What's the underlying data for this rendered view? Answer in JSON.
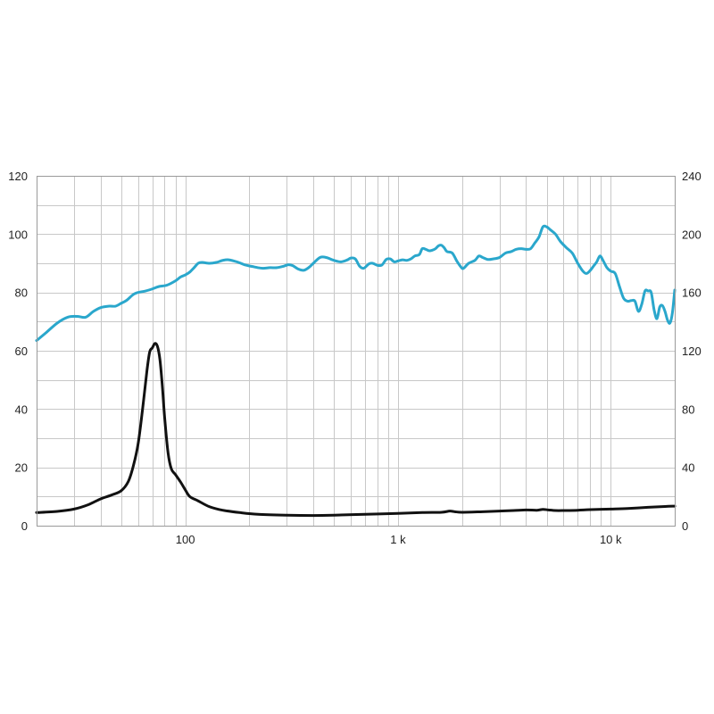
{
  "chart_data": {
    "type": "line",
    "x_scale": "log",
    "xlim": [
      20,
      20000
    ],
    "ylim_left": [
      0,
      120
    ],
    "ylim_right": [
      0,
      240
    ],
    "grid": true,
    "legend": "none",
    "x_ticks": [
      {
        "value": 100,
        "label": "100"
      },
      {
        "value": 1000,
        "label": "1 k"
      },
      {
        "value": 10000,
        "label": "10 k"
      }
    ],
    "left_ticks": [
      {
        "value": 0,
        "label": "0"
      },
      {
        "value": 20,
        "label": "20"
      },
      {
        "value": 40,
        "label": "40"
      },
      {
        "value": 60,
        "label": "60"
      },
      {
        "value": 80,
        "label": "80"
      },
      {
        "value": 100,
        "label": "100"
      },
      {
        "value": 120,
        "label": "120"
      }
    ],
    "right_ticks": [
      {
        "value": 0,
        "label": "0"
      },
      {
        "value": 40,
        "label": "40"
      },
      {
        "value": 80,
        "label": "80"
      },
      {
        "value": 120,
        "label": "120"
      },
      {
        "value": 160,
        "label": "160"
      },
      {
        "value": 200,
        "label": "200"
      },
      {
        "value": 240,
        "label": "240"
      }
    ],
    "series": [
      {
        "axis": "left",
        "color": "#2aa7cc",
        "points": [
          [
            20,
            63.5
          ],
          [
            22,
            66
          ],
          [
            25,
            69.5
          ],
          [
            28,
            71.5
          ],
          [
            31,
            71.8
          ],
          [
            34,
            71.5
          ],
          [
            37,
            73.5
          ],
          [
            40,
            74.8
          ],
          [
            44,
            75.3
          ],
          [
            47,
            75.3
          ],
          [
            50,
            76.3
          ],
          [
            53,
            77.3
          ],
          [
            57,
            79.3
          ],
          [
            60,
            80
          ],
          [
            65,
            80.5
          ],
          [
            70,
            81.2
          ],
          [
            75,
            82
          ],
          [
            82,
            82.5
          ],
          [
            90,
            84
          ],
          [
            95,
            85.3
          ],
          [
            100,
            86
          ],
          [
            105,
            87
          ],
          [
            110,
            88.5
          ],
          [
            115,
            90
          ],
          [
            120,
            90.3
          ],
          [
            130,
            90
          ],
          [
            140,
            90.3
          ],
          [
            150,
            91
          ],
          [
            160,
            91.2
          ],
          [
            175,
            90.5
          ],
          [
            190,
            89.5
          ],
          [
            210,
            88.8
          ],
          [
            230,
            88.3
          ],
          [
            250,
            88.5
          ],
          [
            270,
            88.5
          ],
          [
            290,
            89
          ],
          [
            305,
            89.5
          ],
          [
            320,
            89.2
          ],
          [
            340,
            88
          ],
          [
            360,
            87.6
          ],
          [
            380,
            88.5
          ],
          [
            400,
            90
          ],
          [
            430,
            92
          ],
          [
            460,
            92
          ],
          [
            500,
            91
          ],
          [
            540,
            90.5
          ],
          [
            580,
            91.2
          ],
          [
            600,
            91.8
          ],
          [
            630,
            91.5
          ],
          [
            660,
            89
          ],
          [
            690,
            88.3
          ],
          [
            730,
            89.8
          ],
          [
            760,
            90
          ],
          [
            800,
            89.3
          ],
          [
            840,
            89.4
          ],
          [
            880,
            91.3
          ],
          [
            920,
            91.5
          ],
          [
            960,
            90.5
          ],
          [
            1000,
            90.8
          ],
          [
            1050,
            91.2
          ],
          [
            1100,
            91
          ],
          [
            1150,
            91.5
          ],
          [
            1200,
            92.5
          ],
          [
            1260,
            93
          ],
          [
            1300,
            95
          ],
          [
            1350,
            94.8
          ],
          [
            1400,
            94.3
          ],
          [
            1450,
            94.5
          ],
          [
            1500,
            95
          ],
          [
            1550,
            96
          ],
          [
            1600,
            96.2
          ],
          [
            1650,
            95.3
          ],
          [
            1700,
            94
          ],
          [
            1800,
            93.5
          ],
          [
            1900,
            90.5
          ],
          [
            2000,
            88.3
          ],
          [
            2050,
            88.5
          ],
          [
            2150,
            90
          ],
          [
            2300,
            91
          ],
          [
            2400,
            92.5
          ],
          [
            2500,
            92
          ],
          [
            2650,
            91.3
          ],
          [
            2800,
            91.5
          ],
          [
            3000,
            92
          ],
          [
            3200,
            93.5
          ],
          [
            3400,
            94
          ],
          [
            3600,
            94.8
          ],
          [
            3800,
            95
          ],
          [
            4000,
            94.8
          ],
          [
            4200,
            95
          ],
          [
            4400,
            97
          ],
          [
            4600,
            99
          ],
          [
            4800,
            102.5
          ],
          [
            5000,
            102.5
          ],
          [
            5200,
            101.5
          ],
          [
            5500,
            100
          ],
          [
            5800,
            97.5
          ],
          [
            6200,
            95.3
          ],
          [
            6600,
            93.5
          ],
          [
            7000,
            90
          ],
          [
            7400,
            87.3
          ],
          [
            7700,
            86.5
          ],
          [
            8000,
            87.5
          ],
          [
            8300,
            89
          ],
          [
            8600,
            90.5
          ],
          [
            8900,
            92.5
          ],
          [
            9200,
            91
          ],
          [
            9600,
            88.5
          ],
          [
            10000,
            87.3
          ],
          [
            10500,
            86.5
          ],
          [
            11000,
            82
          ],
          [
            11500,
            78
          ],
          [
            12000,
            77
          ],
          [
            12500,
            77.2
          ],
          [
            13000,
            77
          ],
          [
            13500,
            73.5
          ],
          [
            14000,
            76
          ],
          [
            14500,
            80.5
          ],
          [
            15000,
            80.5
          ],
          [
            15500,
            80
          ],
          [
            16000,
            74
          ],
          [
            16500,
            71
          ],
          [
            17000,
            75
          ],
          [
            17500,
            75.5
          ],
          [
            18000,
            73.5
          ],
          [
            18500,
            70.5
          ],
          [
            19000,
            69.5
          ],
          [
            19500,
            73
          ],
          [
            20000,
            80.8
          ]
        ]
      },
      {
        "axis": "left",
        "color": "#111111",
        "points": [
          [
            20,
            4.5
          ],
          [
            25,
            4.9
          ],
          [
            30,
            5.7
          ],
          [
            35,
            7.2
          ],
          [
            40,
            9.2
          ],
          [
            45,
            10.5
          ],
          [
            50,
            12
          ],
          [
            54,
            15.2
          ],
          [
            57,
            20.5
          ],
          [
            60,
            28
          ],
          [
            63,
            40
          ],
          [
            66,
            53
          ],
          [
            68,
            59.5
          ],
          [
            70,
            61
          ],
          [
            72,
            62.5
          ],
          [
            74,
            61.5
          ],
          [
            76,
            57
          ],
          [
            78,
            48
          ],
          [
            80,
            37
          ],
          [
            83,
            25
          ],
          [
            86,
            19.5
          ],
          [
            90,
            17.5
          ],
          [
            95,
            15
          ],
          [
            100,
            12.3
          ],
          [
            105,
            10
          ],
          [
            115,
            8.5
          ],
          [
            130,
            6.5
          ],
          [
            150,
            5.3
          ],
          [
            180,
            4.5
          ],
          [
            220,
            3.9
          ],
          [
            300,
            3.6
          ],
          [
            400,
            3.5
          ],
          [
            500,
            3.6
          ],
          [
            700,
            3.9
          ],
          [
            1000,
            4.2
          ],
          [
            1300,
            4.5
          ],
          [
            1600,
            4.6
          ],
          [
            1750,
            5
          ],
          [
            1850,
            4.8
          ],
          [
            2000,
            4.6
          ],
          [
            2500,
            4.8
          ],
          [
            3000,
            5
          ],
          [
            3500,
            5.2
          ],
          [
            4000,
            5.4
          ],
          [
            4500,
            5.3
          ],
          [
            4800,
            5.6
          ],
          [
            5100,
            5.4
          ],
          [
            5500,
            5.2
          ],
          [
            6000,
            5.2
          ],
          [
            7000,
            5.3
          ],
          [
            8000,
            5.5
          ],
          [
            10000,
            5.7
          ],
          [
            12000,
            5.9
          ],
          [
            15000,
            6.3
          ],
          [
            18000,
            6.6
          ],
          [
            20000,
            6.7
          ]
        ]
      }
    ]
  }
}
